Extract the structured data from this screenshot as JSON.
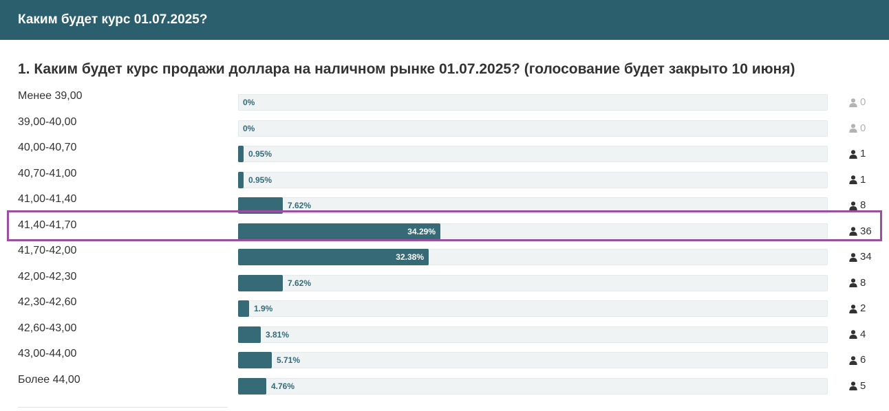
{
  "header": {
    "title": "Каким будет курс 01.07.2025?"
  },
  "question": {
    "text": "1. Каким будет курс продажи доллара на наличном рынке 01.07.2025? (голосование будет закрыто 10 июня)"
  },
  "colors": {
    "header_bg": "#2b5f6d",
    "bar": "#376a77",
    "track": "#eff3f4",
    "highlight": "#9c4fa0"
  },
  "highlighted_index": 5,
  "chart_data": {
    "type": "bar",
    "orientation": "horizontal",
    "title": "",
    "categories": [
      "Менее 39,00",
      "39,00-40,00",
      "40,00-40,70",
      "40,70-41,00",
      "41,00-41,40",
      "41,40-41,70",
      "41,70-42,00",
      "42,00-42,30",
      "42,30-42,60",
      "42,60-43,00",
      "43,00-44,00",
      "Более 44,00"
    ],
    "percent_labels": [
      "0%",
      "0%",
      "0.95%",
      "0.95%",
      "7.62%",
      "34.29%",
      "32.38%",
      "7.62%",
      "1.9%",
      "3.81%",
      "5.71%",
      "4.76%"
    ],
    "values": [
      0,
      0,
      0.95,
      0.95,
      7.62,
      34.29,
      32.38,
      7.62,
      1.9,
      3.81,
      5.71,
      4.76
    ],
    "votes": [
      0,
      0,
      1,
      1,
      8,
      36,
      34,
      8,
      2,
      4,
      6,
      5
    ],
    "vote_icon": "user-icon",
    "xlim": [
      0,
      100
    ]
  }
}
